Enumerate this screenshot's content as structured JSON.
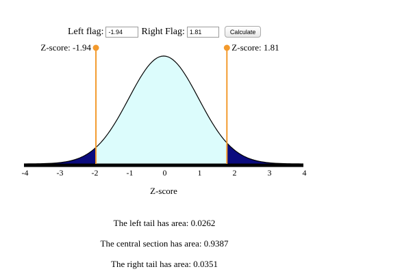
{
  "controls": {
    "left_label": "Left flag:",
    "left_value": "-1.94",
    "right_label": "Right Flag:",
    "right_value": "1.81",
    "calculate_label": "Calculate"
  },
  "flags": {
    "left_label": "Z-score: -1.94",
    "right_label": "Z-score: 1.81",
    "color": "#f39a2d"
  },
  "chart_data": {
    "type": "area",
    "distribution": "standard normal",
    "xlabel": "Z-score",
    "xlim": [
      -4,
      4
    ],
    "ticks": [
      "-4",
      "-3",
      "-2",
      "-1",
      "0",
      "1",
      "2",
      "3",
      "4"
    ],
    "left_flag": -1.94,
    "right_flag": 1.81,
    "tail_color": "#0b0b7e",
    "center_color": "#dcfcfc",
    "regions": [
      {
        "name": "left tail",
        "area": 0.0262
      },
      {
        "name": "central section",
        "area": 0.9387
      },
      {
        "name": "right tail",
        "area": 0.0351
      }
    ]
  },
  "results": {
    "left_text": "The left tail has area: 0.0262",
    "center_text": "The central section has area: 0.9387",
    "right_text": "The right tail has area: 0.0351"
  }
}
